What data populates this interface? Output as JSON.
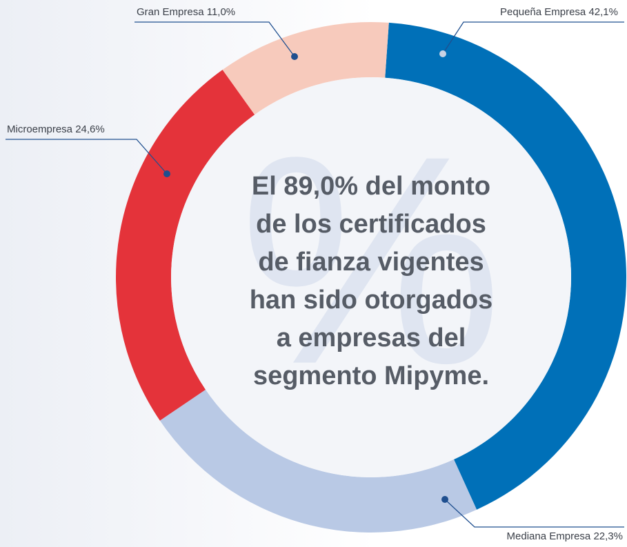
{
  "chart_data": {
    "type": "donut",
    "categories": [
      "Pequeña Empresa",
      "Mediana Empresa",
      "Microempresa",
      "Gran Empresa"
    ],
    "values": [
      42.1,
      22.3,
      24.6,
      11.0
    ],
    "value_labels": [
      "42,1%",
      "22,3%",
      "24,6%",
      "11,0%"
    ],
    "colors": [
      "#0070b8",
      "#b9c9e5",
      "#e4333a",
      "#f7cabc"
    ],
    "watermark": "%",
    "center_text": [
      "El 89,0% del monto",
      "de los certificados",
      "de fianza vigentes",
      "han sido otorgados",
      "a empresas del",
      "segmento Mipyme."
    ]
  }
}
